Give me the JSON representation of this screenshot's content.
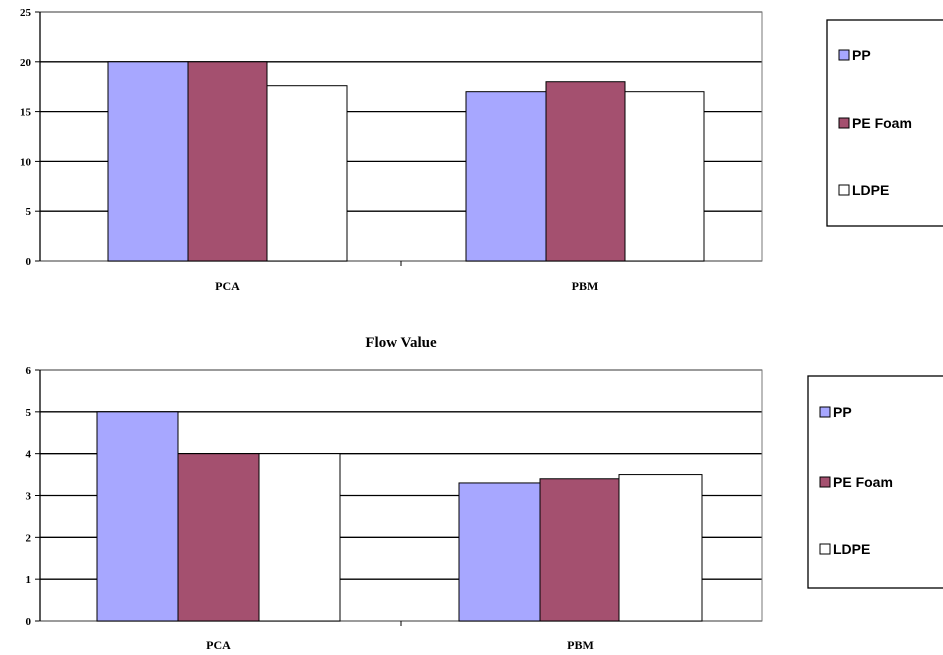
{
  "colors": {
    "PP": "#a7a7ff",
    "PE Foam": "#a4506f",
    "LDPE": "#ffffff",
    "grid": "#000000"
  },
  "chart_data": [
    {
      "type": "bar",
      "title": "",
      "categories": [
        "PCA",
        "PBM"
      ],
      "series": [
        {
          "name": "PP",
          "values": [
            20,
            17
          ]
        },
        {
          "name": "PE Foam",
          "values": [
            20,
            18
          ]
        },
        {
          "name": "LDPE",
          "values": [
            17.6,
            17
          ]
        }
      ],
      "ylim": [
        0,
        25
      ],
      "yticks": [
        "0",
        "5",
        "10",
        "15",
        "20",
        "25"
      ],
      "grid": true,
      "legend": "right"
    },
    {
      "type": "bar",
      "title": "Flow Value",
      "categories": [
        "PCA",
        "PBM"
      ],
      "series": [
        {
          "name": "PP",
          "values": [
            5,
            3.3
          ]
        },
        {
          "name": "PE Foam",
          "values": [
            4,
            3.4
          ]
        },
        {
          "name": "LDPE",
          "values": [
            4,
            3.5
          ]
        }
      ],
      "ylim": [
        0,
        6
      ],
      "yticks": [
        "0",
        "1",
        "2",
        "3",
        "4",
        "5",
        "6"
      ],
      "grid": true,
      "legend": "right"
    }
  ]
}
